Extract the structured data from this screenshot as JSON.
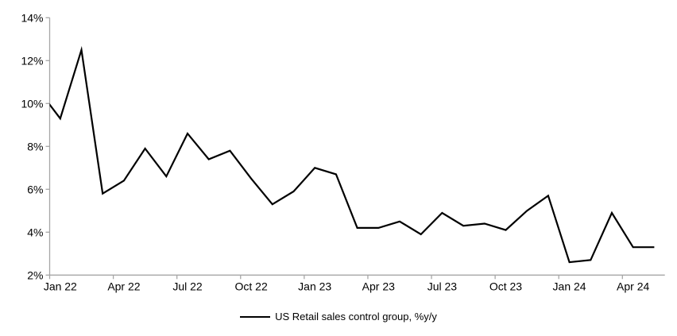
{
  "figure": {
    "background": "#ffffff",
    "text_color": "#000000"
  },
  "chart_data": {
    "type": "line",
    "title": "",
    "grid": false,
    "axis_color": "#a6a6a6",
    "line_color": "#000000",
    "legend": {
      "position": "bottom-center",
      "entries": [
        {
          "label": "US Retail sales control group, %y/y",
          "color": "#000000"
        }
      ]
    },
    "x_categories": [
      "Jan 22",
      "Feb 22",
      "Mar 22",
      "Apr 22",
      "May 22",
      "Jun 22",
      "Jul 22",
      "Aug 22",
      "Sep 22",
      "Oct 22",
      "Nov 22",
      "Dec 22",
      "Jan 23",
      "Feb 23",
      "Mar 23",
      "Apr 23",
      "May 23",
      "Jun 23",
      "Jul 23",
      "Aug 23",
      "Sep 23",
      "Oct 23",
      "Nov 23",
      "Dec 23",
      "Jan 24",
      "Feb 24",
      "Mar 24",
      "Apr 24",
      "May 24"
    ],
    "series": [
      {
        "name": "US Retail sales control group, %y/y",
        "color": "#000000",
        "values": [
          9.3,
          12.5,
          5.8,
          6.4,
          7.9,
          6.6,
          8.6,
          7.4,
          7.8,
          6.5,
          5.3,
          5.9,
          7.0,
          6.7,
          4.2,
          4.2,
          4.5,
          3.9,
          4.9,
          4.3,
          4.4,
          4.1,
          5.0,
          5.7,
          2.6,
          2.7,
          4.9,
          3.3,
          3.3
        ]
      }
    ],
    "lead_in_point": {
      "category": "Dec 21",
      "value": 10.6,
      "note": "line enters plot clipped at left axis at ~10%"
    },
    "y_axis": {
      "min": 2,
      "max": 14,
      "step": 2,
      "tick_labels": [
        "2%",
        "4%",
        "6%",
        "8%",
        "10%",
        "12%",
        "14%"
      ]
    },
    "x_axis": {
      "tick_label_every_n_categories": 3,
      "tick_labels": [
        "Jan 22",
        "Apr 22",
        "Jul 22",
        "Oct 22",
        "Jan 23",
        "Apr 23",
        "Jul 23",
        "Oct 23",
        "Jan 24",
        "Apr 24"
      ]
    }
  }
}
